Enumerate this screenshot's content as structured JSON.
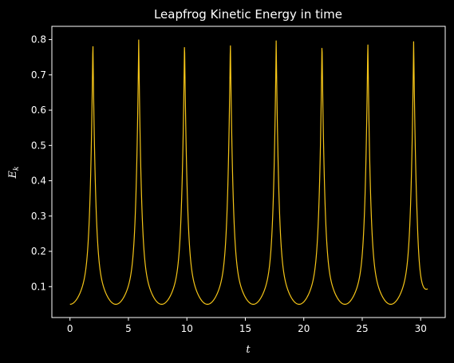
{
  "chart_data": {
    "type": "line",
    "title": "Leapfrog Kinetic Energy in time",
    "xlabel": "t",
    "ylabel": {
      "main": "E",
      "sub": "k"
    },
    "xlim": [
      -1.55,
      32.1
    ],
    "ylim": [
      0.0125,
      0.8375
    ],
    "xticks": [
      0,
      5,
      10,
      15,
      20,
      25,
      30
    ],
    "yticks": [
      0.1,
      0.2,
      0.3,
      0.4,
      0.5,
      0.6,
      0.7,
      0.8
    ],
    "xtick_labels": [
      "0",
      "5",
      "10",
      "15",
      "20",
      "25",
      "30"
    ],
    "ytick_labels": [
      "0.1",
      "0.2",
      "0.3",
      "0.4",
      "0.5",
      "0.6",
      "0.7",
      "0.8"
    ],
    "grid": false,
    "series": [
      {
        "color": "#f5c518",
        "period": 3.92,
        "peak_times": [
          1.96,
          5.88,
          9.8,
          13.72,
          17.64,
          21.56,
          25.48,
          29.4
        ],
        "trough_times": [
          0,
          3.92,
          7.84,
          11.76,
          15.68,
          19.6,
          23.52,
          27.44
        ],
        "peak_value": 0.8,
        "trough_value": 0.05,
        "x": [
          0,
          0.5,
          1.0,
          1.5,
          1.96,
          2.4,
          2.9,
          3.4,
          3.92,
          4.4,
          4.9,
          5.4,
          5.88,
          6.3,
          6.8,
          7.3,
          7.84,
          8.3,
          8.8,
          9.3,
          9.8,
          10.3,
          10.8,
          11.3,
          11.76,
          12.2,
          12.7,
          13.2,
          13.72,
          14.2,
          14.7,
          15.2,
          15.68,
          16.1,
          16.6,
          17.1,
          17.64,
          18.1,
          18.6,
          19.1,
          19.6,
          20.1,
          20.6,
          21.1,
          21.56,
          22.0,
          22.5,
          23.0,
          23.52,
          24.0,
          24.5,
          25.0,
          25.48,
          25.9,
          26.4,
          26.9,
          27.44,
          27.9,
          28.4,
          28.9,
          29.4,
          29.9,
          30.4,
          30.6
        ],
        "y": [
          0.05,
          0.07,
          0.13,
          0.32,
          0.8,
          0.28,
          0.12,
          0.07,
          0.05,
          0.07,
          0.12,
          0.3,
          0.8,
          0.3,
          0.12,
          0.07,
          0.05,
          0.07,
          0.12,
          0.29,
          0.8,
          0.27,
          0.11,
          0.06,
          0.05,
          0.07,
          0.12,
          0.29,
          0.8,
          0.29,
          0.12,
          0.06,
          0.05,
          0.06,
          0.11,
          0.27,
          0.8,
          0.3,
          0.12,
          0.07,
          0.05,
          0.07,
          0.12,
          0.3,
          0.8,
          0.3,
          0.12,
          0.07,
          0.05,
          0.07,
          0.12,
          0.29,
          0.8,
          0.31,
          0.12,
          0.07,
          0.05,
          0.07,
          0.12,
          0.3,
          0.8,
          0.26,
          0.11,
          0.094
        ]
      }
    ]
  }
}
